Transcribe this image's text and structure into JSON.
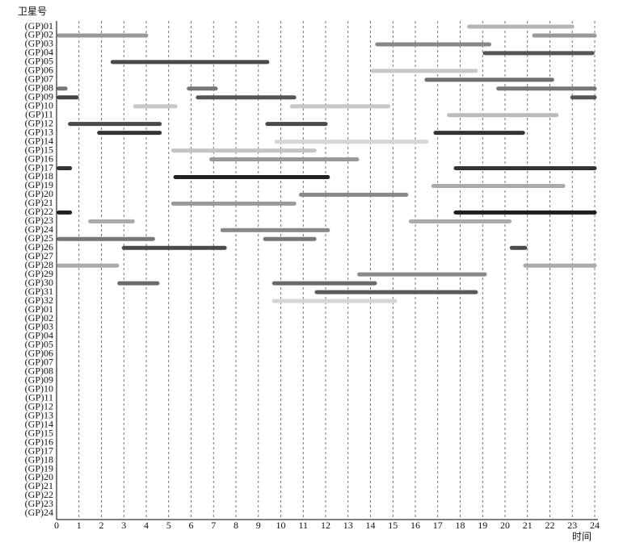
{
  "chart_data": {
    "type": "gantt",
    "y_label": "卫星号",
    "x_label": "时间",
    "xlim": [
      0,
      24
    ],
    "xticks": [
      0,
      1,
      2,
      3,
      4,
      5,
      6,
      7,
      8,
      9,
      10,
      11,
      12,
      13,
      14,
      15,
      16,
      17,
      18,
      19,
      20,
      21,
      22,
      23,
      24
    ],
    "grid": true,
    "rows": [
      {
        "label": "(GP)01",
        "bars": [
          {
            "start": 18.4,
            "end": 23.0,
            "color": "#b4b4b4"
          }
        ]
      },
      {
        "label": "(GP)02",
        "bars": [
          {
            "start": 0.1,
            "end": 4.0,
            "color": "#999999"
          },
          {
            "start": 21.3,
            "end": 24,
            "color": "#999999"
          }
        ]
      },
      {
        "label": "(GP)03",
        "bars": [
          {
            "start": 14.3,
            "end": 19.3,
            "color": "#888888"
          }
        ]
      },
      {
        "label": "(GP)04",
        "bars": [
          {
            "start": 19.1,
            "end": 23.9,
            "color": "#555555"
          }
        ]
      },
      {
        "label": "(GP)05",
        "bars": [
          {
            "start": 2.5,
            "end": 9.4,
            "color": "#4a4a4a"
          }
        ]
      },
      {
        "label": "(GP)06",
        "bars": [
          {
            "start": 14.1,
            "end": 18.7,
            "color": "#c8c8c8"
          }
        ]
      },
      {
        "label": "(GP)07",
        "bars": [
          {
            "start": 16.5,
            "end": 22.1,
            "color": "#6e6e6e"
          }
        ]
      },
      {
        "label": "(GP)08",
        "bars": [
          {
            "start": 0.1,
            "end": 0.4,
            "color": "#777777"
          },
          {
            "start": 5.9,
            "end": 7.1,
            "color": "#777777"
          },
          {
            "start": 19.7,
            "end": 24,
            "color": "#777777"
          }
        ]
      },
      {
        "label": "(GP)09",
        "bars": [
          {
            "start": 0.1,
            "end": 0.9,
            "color": "#444444"
          },
          {
            "start": 6.3,
            "end": 10.6,
            "color": "#555555"
          },
          {
            "start": 23.0,
            "end": 24,
            "color": "#555555"
          }
        ]
      },
      {
        "label": "(GP)10",
        "bars": [
          {
            "start": 3.5,
            "end": 5.3,
            "color": "#c8c8c8"
          },
          {
            "start": 10.5,
            "end": 14.8,
            "color": "#c8c8c8"
          }
        ]
      },
      {
        "label": "(GP)11",
        "bars": [
          {
            "start": 17.5,
            "end": 22.3,
            "color": "#bbbbbb"
          }
        ]
      },
      {
        "label": "(GP)12",
        "bars": [
          {
            "start": 0.6,
            "end": 4.6,
            "color": "#4a4a4a"
          },
          {
            "start": 9.4,
            "end": 12.0,
            "color": "#4a4a4a"
          }
        ]
      },
      {
        "label": "(GP)13",
        "bars": [
          {
            "start": 1.9,
            "end": 4.6,
            "color": "#333333"
          },
          {
            "start": 16.9,
            "end": 20.8,
            "color": "#333333"
          }
        ]
      },
      {
        "label": "(GP)14",
        "bars": [
          {
            "start": 9.8,
            "end": 16.5,
            "color": "#d6d6d6"
          }
        ]
      },
      {
        "label": "(GP)15",
        "bars": [
          {
            "start": 5.2,
            "end": 11.5,
            "color": "#c4c4c4"
          }
        ]
      },
      {
        "label": "(GP)16",
        "bars": [
          {
            "start": 6.9,
            "end": 13.4,
            "color": "#999999"
          }
        ]
      },
      {
        "label": "(GP)17",
        "bars": [
          {
            "start": 0.1,
            "end": 0.6,
            "color": "#333333"
          },
          {
            "start": 17.8,
            "end": 24,
            "color": "#333333"
          }
        ]
      },
      {
        "label": "(GP)18",
        "bars": [
          {
            "start": 5.3,
            "end": 12.1,
            "color": "#222222"
          }
        ]
      },
      {
        "label": "(GP)19",
        "bars": [
          {
            "start": 16.8,
            "end": 22.6,
            "color": "#aaaaaa"
          }
        ]
      },
      {
        "label": "(GP)20",
        "bars": [
          {
            "start": 10.9,
            "end": 15.6,
            "color": "#888888"
          }
        ]
      },
      {
        "label": "(GP)21",
        "bars": [
          {
            "start": 5.2,
            "end": 10.6,
            "color": "#999999"
          }
        ]
      },
      {
        "label": "(GP)22",
        "bars": [
          {
            "start": 0.1,
            "end": 0.6,
            "color": "#1e1e1e"
          },
          {
            "start": 17.8,
            "end": 24,
            "color": "#1e1e1e"
          }
        ]
      },
      {
        "label": "(GP)23",
        "bars": [
          {
            "start": 1.5,
            "end": 3.4,
            "color": "#aaaaaa"
          },
          {
            "start": 15.8,
            "end": 20.2,
            "color": "#aaaaaa"
          }
        ]
      },
      {
        "label": "(GP)24",
        "bars": [
          {
            "start": 7.4,
            "end": 12.1,
            "color": "#888888"
          }
        ]
      },
      {
        "label": "(GP)25",
        "bars": [
          {
            "start": 0.1,
            "end": 4.3,
            "color": "#777777"
          },
          {
            "start": 9.3,
            "end": 11.5,
            "color": "#777777"
          }
        ]
      },
      {
        "label": "(GP)26",
        "bars": [
          {
            "start": 3.0,
            "end": 7.5,
            "color": "#4a4a4a"
          },
          {
            "start": 20.3,
            "end": 20.9,
            "color": "#4a4a4a"
          }
        ]
      },
      {
        "label": "(GP)27",
        "bars": []
      },
      {
        "label": "(GP)28",
        "bars": [
          {
            "start": 0.1,
            "end": 2.7,
            "color": "#aaaaaa"
          },
          {
            "start": 20.9,
            "end": 24,
            "color": "#aaaaaa"
          }
        ]
      },
      {
        "label": "(GP)29",
        "bars": [
          {
            "start": 13.5,
            "end": 19.1,
            "color": "#888888"
          }
        ]
      },
      {
        "label": "(GP)30",
        "bars": [
          {
            "start": 2.8,
            "end": 4.5,
            "color": "#6a6a6a"
          },
          {
            "start": 9.7,
            "end": 14.2,
            "color": "#6a6a6a"
          }
        ]
      },
      {
        "label": "(GP)31",
        "bars": [
          {
            "start": 11.6,
            "end": 18.7,
            "color": "#5a5a5a"
          }
        ]
      },
      {
        "label": "(GP)32",
        "bars": [
          {
            "start": 9.7,
            "end": 15.1,
            "color": "#d6d6d6"
          }
        ]
      },
      {
        "label": "(GP)01",
        "bars": []
      },
      {
        "label": "(GP)02",
        "bars": []
      },
      {
        "label": "(GP)03",
        "bars": []
      },
      {
        "label": "(GP)04",
        "bars": []
      },
      {
        "label": "(GP)05",
        "bars": []
      },
      {
        "label": "(GP)06",
        "bars": []
      },
      {
        "label": "(GP)07",
        "bars": []
      },
      {
        "label": "(GP)08",
        "bars": []
      },
      {
        "label": "(GP)09",
        "bars": []
      },
      {
        "label": "(GP)10",
        "bars": []
      },
      {
        "label": "(GP)11",
        "bars": []
      },
      {
        "label": "(GP)12",
        "bars": []
      },
      {
        "label": "(GP)13",
        "bars": []
      },
      {
        "label": "(GP)14",
        "bars": []
      },
      {
        "label": "(GP)15",
        "bars": []
      },
      {
        "label": "(GP)16",
        "bars": []
      },
      {
        "label": "(GP)17",
        "bars": []
      },
      {
        "label": "(GP)18",
        "bars": []
      },
      {
        "label": "(GP)19",
        "bars": []
      },
      {
        "label": "(GP)20",
        "bars": []
      },
      {
        "label": "(GP)21",
        "bars": []
      },
      {
        "label": "(GP)22",
        "bars": []
      },
      {
        "label": "(GP)23",
        "bars": []
      },
      {
        "label": "(GP)24",
        "bars": []
      }
    ]
  }
}
